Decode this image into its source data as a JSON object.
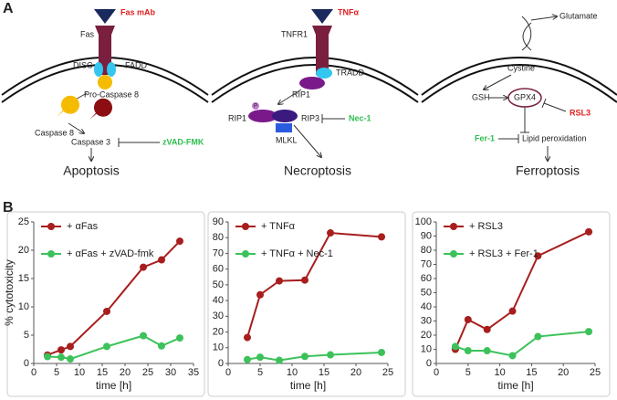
{
  "panel_a": {
    "label": "A",
    "apoptosis": {
      "ligand": "Fas mAb",
      "receptor": "Fas",
      "disc": "DISC",
      "fadd": "FADD",
      "procaspase": "Pro-Caspase 8",
      "caspase8": "Caspase 8",
      "caspase3": "Caspase 3",
      "inhibitor": "zVAD-FMK",
      "outcome": "Apoptosis"
    },
    "necroptosis": {
      "ligand": "TNFα",
      "receptor": "TNFR1",
      "tradd": "TRADD",
      "rip1_top": "RIP1",
      "rip1": "RIP1",
      "phospho": "P",
      "rip3": "RIP3",
      "inhibitor": "Nec-1",
      "mlkl": "MLKL",
      "outcome": "Necroptosis"
    },
    "ferroptosis": {
      "glutamate": "Glutamate",
      "cystine": "Cystine",
      "gsh": "GSH",
      "gpx4": "GPX4",
      "inducer": "RSL3",
      "inhibitor": "Fer-1",
      "lipid": "Lipid peroxidation",
      "outcome": "Ferroptosis"
    }
  },
  "panel_b_label": "B",
  "chart_data": [
    {
      "type": "line",
      "x_label": "time [h]",
      "y_label": "% cytotoxicity",
      "x": [
        3,
        6,
        8,
        16,
        24,
        28,
        32
      ],
      "xlim": [
        0,
        35
      ],
      "xticks": [
        0,
        5,
        10,
        15,
        20,
        25,
        30,
        35
      ],
      "ylim": [
        0,
        25
      ],
      "yticks": [
        0,
        5,
        10,
        15,
        20,
        25
      ],
      "series": [
        {
          "name": "+ αFas",
          "color": "#a81e1e",
          "values": [
            1.5,
            2.4,
            3,
            9.2,
            17,
            18.3,
            21.6
          ]
        },
        {
          "name": "+ αFas + zVAD-fmk",
          "color": "#3cc25a",
          "values": [
            1.2,
            1.1,
            0.8,
            3,
            4.9,
            3.1,
            4.5
          ]
        }
      ]
    },
    {
      "type": "line",
      "x_label": "time [h]",
      "x": [
        3,
        5,
        8,
        12,
        16,
        24
      ],
      "xlim": [
        0,
        25
      ],
      "xticks": [
        0,
        5,
        10,
        15,
        20,
        25
      ],
      "ylim": [
        0,
        90
      ],
      "yticks": [
        0,
        10,
        20,
        30,
        40,
        50,
        60,
        70,
        80,
        90
      ],
      "series": [
        {
          "name": "+ TNFα",
          "color": "#a81e1e",
          "values": [
            16.5,
            43.7,
            52.5,
            53,
            83,
            80.5
          ]
        },
        {
          "name": "+ TNFα + Nec-1",
          "color": "#3cc25a",
          "values": [
            2.5,
            4,
            2,
            4.5,
            5.5,
            7
          ]
        }
      ]
    },
    {
      "type": "line",
      "x_label": "time [h]",
      "x": [
        3,
        5,
        8,
        12,
        16,
        24
      ],
      "xlim": [
        0,
        25
      ],
      "xticks": [
        0,
        5,
        10,
        15,
        20,
        25
      ],
      "ylim": [
        0,
        100
      ],
      "yticks": [
        0,
        10,
        20,
        30,
        40,
        50,
        60,
        70,
        80,
        90,
        100
      ],
      "series": [
        {
          "name": "+ RSL3",
          "color": "#a81e1e",
          "values": [
            10,
            31,
            24,
            37,
            76,
            93
          ]
        },
        {
          "name": "+ RSL3 + Fer-1",
          "color": "#3cc25a",
          "values": [
            12,
            9,
            9,
            5.5,
            19,
            22.5
          ]
        }
      ]
    }
  ]
}
